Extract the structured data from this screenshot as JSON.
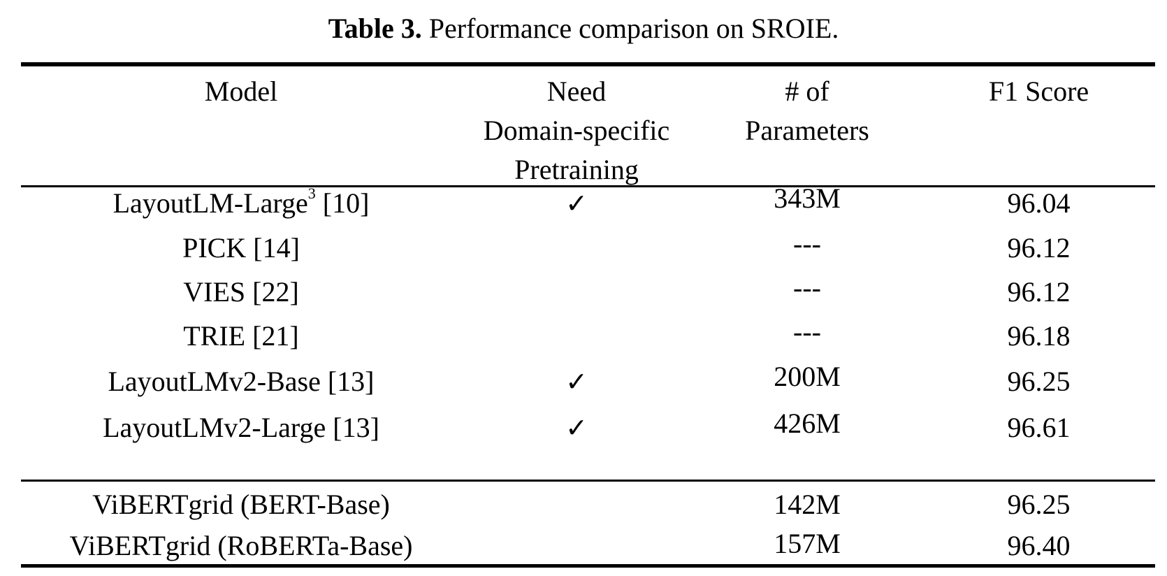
{
  "caption": {
    "label": "Table 3.",
    "text": " Performance comparison on SROIE."
  },
  "table": {
    "headers": {
      "model": "Model",
      "need_lines": [
        "Need",
        "Domain-specific",
        "Pretraining"
      ],
      "params_lines": [
        "# of",
        "Parameters"
      ],
      "f1": "F1 Score"
    },
    "rows": [
      {
        "model": "LayoutLM-Large",
        "footnote": "3",
        "ref": " [10]",
        "need": "✓",
        "params": "343M",
        "f1": "96.04"
      },
      {
        "model": "PICK [14]",
        "footnote": "",
        "ref": "",
        "need": "",
        "params": "---",
        "f1": "96.12"
      },
      {
        "model": "VIES [22]",
        "footnote": "",
        "ref": "",
        "need": "",
        "params": "---",
        "f1": "96.12"
      },
      {
        "model": "TRIE [21]",
        "footnote": "",
        "ref": "",
        "need": "",
        "params": "---",
        "f1": "96.18"
      },
      {
        "model": "LayoutLMv2-Base [13]",
        "footnote": "",
        "ref": "",
        "need": "✓",
        "params": "200M",
        "f1": "96.25"
      },
      {
        "model": "LayoutLMv2-Large [13]",
        "footnote": "",
        "ref": "",
        "need": "✓",
        "params": "426M",
        "f1": "96.61"
      },
      {
        "model": "ViBERTgrid (BERT-Base)",
        "footnote": "",
        "ref": "",
        "need": "",
        "params": "142M",
        "f1": "96.25"
      },
      {
        "model": "ViBERTgrid (RoBERTa-Base)",
        "footnote": "",
        "ref": "",
        "need": "",
        "params": "157M",
        "f1": "96.40"
      }
    ]
  }
}
